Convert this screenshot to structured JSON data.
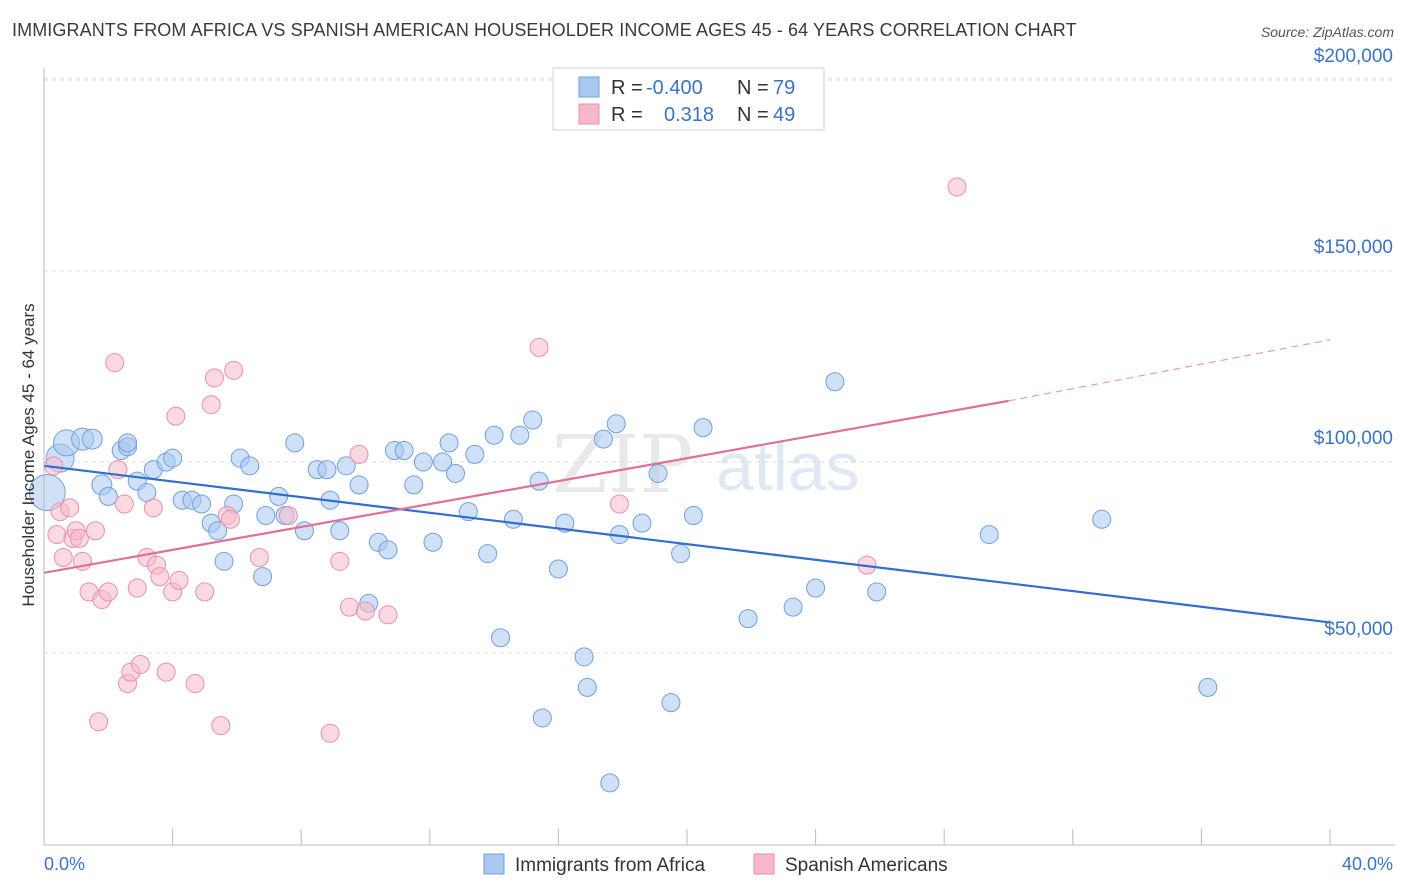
{
  "title": "IMMIGRANTS FROM AFRICA VS SPANISH AMERICAN HOUSEHOLDER INCOME AGES 45 - 64 YEARS CORRELATION CHART",
  "source": "Source: ZipAtlas.com",
  "watermark": {
    "zip": "ZIP",
    "atlas": "atlas"
  },
  "legend_top": [
    {
      "r_label": "R =",
      "r_value": "-0.400",
      "n_label": "N =",
      "n_value": "79",
      "color": "#a9c8f0"
    },
    {
      "r_label": "R =",
      "r_value": "0.318",
      "n_label": "N =",
      "n_value": "49",
      "color": "#f6b9cb"
    }
  ],
  "chart_data": {
    "type": "scatter",
    "title": "IMMIGRANTS FROM AFRICA VS SPANISH AMERICAN HOUSEHOLDER INCOME AGES 45 - 64 YEARS CORRELATION CHART",
    "xlabel": "",
    "ylabel": "Householder Income Ages 45 - 64 years",
    "xlim": [
      0,
      40
    ],
    "ylim": [
      5000,
      210000
    ],
    "x_tick_labels": [
      "0.0%",
      "40.0%"
    ],
    "y_ticks": [
      50000,
      100000,
      150000,
      200000
    ],
    "y_tick_labels": [
      "$50,000",
      "$100,000",
      "$150,000",
      "$200,000"
    ],
    "grid": true,
    "legend_position": "top-center",
    "series": [
      {
        "name": "Immigrants from Africa",
        "color": "#6fa0e0",
        "fill": "#a9c8f0",
        "trend": {
          "x0": 0,
          "y0": 99000,
          "x1": 40,
          "y1": 58000,
          "color": "#2f6fce"
        },
        "points": [
          [
            0.1,
            92000,
            18
          ],
          [
            0.5,
            101000,
            14
          ],
          [
            0.7,
            105000,
            13
          ],
          [
            1.2,
            106000,
            11
          ],
          [
            1.5,
            106000,
            10
          ],
          [
            1.8,
            94000,
            10
          ],
          [
            2.0,
            91000,
            9
          ],
          [
            2.4,
            103000,
            9
          ],
          [
            2.6,
            104000,
            9
          ],
          [
            2.9,
            95000,
            9
          ],
          [
            3.2,
            92000,
            9
          ],
          [
            3.4,
            98000,
            9
          ],
          [
            3.8,
            100000,
            9
          ],
          [
            4.0,
            101000,
            9
          ],
          [
            4.3,
            90000,
            9
          ],
          [
            4.6,
            90000,
            9
          ],
          [
            4.9,
            89000,
            9
          ],
          [
            5.2,
            84000,
            9
          ],
          [
            5.4,
            82000,
            9
          ],
          [
            5.6,
            74000,
            9
          ],
          [
            5.9,
            89000,
            9
          ],
          [
            6.1,
            101000,
            9
          ],
          [
            6.4,
            99000,
            9
          ],
          [
            6.8,
            70000,
            9
          ],
          [
            6.9,
            86000,
            9
          ],
          [
            7.3,
            91000,
            9
          ],
          [
            7.5,
            86000,
            9
          ],
          [
            7.8,
            105000,
            9
          ],
          [
            8.1,
            82000,
            9
          ],
          [
            8.5,
            98000,
            9
          ],
          [
            8.8,
            98000,
            9
          ],
          [
            8.9,
            90000,
            9
          ],
          [
            9.2,
            82000,
            9
          ],
          [
            9.4,
            99000,
            9
          ],
          [
            9.8,
            94000,
            9
          ],
          [
            10.1,
            63000,
            9
          ],
          [
            10.4,
            79000,
            9
          ],
          [
            10.7,
            77000,
            9
          ],
          [
            10.9,
            103000,
            9
          ],
          [
            11.2,
            103000,
            9
          ],
          [
            11.5,
            94000,
            9
          ],
          [
            11.8,
            100000,
            9
          ],
          [
            12.1,
            79000,
            9
          ],
          [
            12.4,
            100000,
            9
          ],
          [
            12.6,
            105000,
            9
          ],
          [
            12.8,
            97000,
            9
          ],
          [
            13.2,
            87000,
            9
          ],
          [
            13.4,
            102000,
            9
          ],
          [
            13.8,
            76000,
            9
          ],
          [
            14.0,
            107000,
            9
          ],
          [
            14.2,
            54000,
            9
          ],
          [
            14.6,
            85000,
            9
          ],
          [
            14.8,
            107000,
            9
          ],
          [
            15.2,
            111000,
            9
          ],
          [
            15.4,
            95000,
            9
          ],
          [
            15.5,
            33000,
            9
          ],
          [
            16.0,
            72000,
            9
          ],
          [
            16.2,
            84000,
            9
          ],
          [
            16.8,
            49000,
            9
          ],
          [
            16.9,
            41000,
            9
          ],
          [
            17.4,
            106000,
            9
          ],
          [
            17.8,
            110000,
            9
          ],
          [
            17.6,
            16000,
            9
          ],
          [
            17.9,
            81000,
            9
          ],
          [
            18.6,
            84000,
            9
          ],
          [
            19.1,
            97000,
            9
          ],
          [
            19.5,
            37000,
            9
          ],
          [
            19.8,
            76000,
            9
          ],
          [
            20.2,
            86000,
            9
          ],
          [
            20.5,
            109000,
            9
          ],
          [
            21.9,
            59000,
            9
          ],
          [
            23.3,
            62000,
            9
          ],
          [
            24.0,
            67000,
            9
          ],
          [
            24.6,
            121000,
            9
          ],
          [
            25.9,
            66000,
            9
          ],
          [
            29.4,
            81000,
            9
          ],
          [
            32.9,
            85000,
            9
          ],
          [
            36.2,
            41000,
            9
          ],
          [
            2.6,
            105000,
            9
          ]
        ]
      },
      {
        "name": "Spanish Americans",
        "color": "#ec8fab",
        "fill": "#f6b9cb",
        "trend": {
          "x0": 0,
          "y0": 71000,
          "x1": 30,
          "y1": 116000,
          "color": "#e07099"
        },
        "trend_dashed": {
          "x0": 30,
          "y0": 116000,
          "x1": 40,
          "y1": 132000
        },
        "points": [
          [
            0.3,
            99000,
            9
          ],
          [
            0.4,
            81000,
            9
          ],
          [
            0.5,
            87000,
            9
          ],
          [
            0.6,
            75000,
            9
          ],
          [
            0.8,
            88000,
            9
          ],
          [
            0.9,
            80000,
            9
          ],
          [
            1.0,
            82000,
            9
          ],
          [
            1.1,
            80000,
            9
          ],
          [
            1.2,
            74000,
            9
          ],
          [
            1.4,
            66000,
            9
          ],
          [
            1.6,
            82000,
            9
          ],
          [
            1.8,
            64000,
            9
          ],
          [
            1.7,
            32000,
            9
          ],
          [
            2.0,
            66000,
            9
          ],
          [
            2.2,
            126000,
            9
          ],
          [
            2.3,
            98000,
            9
          ],
          [
            2.5,
            89000,
            9
          ],
          [
            2.6,
            42000,
            9
          ],
          [
            2.7,
            45000,
            9
          ],
          [
            2.9,
            67000,
            9
          ],
          [
            3.0,
            47000,
            9
          ],
          [
            3.2,
            75000,
            9
          ],
          [
            3.4,
            88000,
            9
          ],
          [
            3.5,
            73000,
            9
          ],
          [
            3.8,
            45000,
            9
          ],
          [
            4.0,
            66000,
            9
          ],
          [
            4.1,
            112000,
            9
          ],
          [
            4.2,
            69000,
            9
          ],
          [
            4.7,
            42000,
            9
          ],
          [
            5.0,
            66000,
            9
          ],
          [
            5.2,
            115000,
            9
          ],
          [
            5.3,
            122000,
            9
          ],
          [
            5.5,
            31000,
            9
          ],
          [
            5.7,
            86000,
            9
          ],
          [
            5.9,
            124000,
            9
          ],
          [
            6.7,
            75000,
            9
          ],
          [
            7.6,
            86000,
            9
          ],
          [
            8.9,
            29000,
            9
          ],
          [
            9.2,
            74000,
            9
          ],
          [
            9.5,
            62000,
            9
          ],
          [
            9.8,
            102000,
            9
          ],
          [
            10.0,
            61000,
            9
          ],
          [
            10.7,
            60000,
            9
          ],
          [
            15.4,
            130000,
            9
          ],
          [
            17.9,
            89000,
            9
          ],
          [
            25.6,
            73000,
            9
          ],
          [
            28.4,
            172000,
            9
          ],
          [
            5.8,
            85000,
            9
          ],
          [
            3.6,
            70000,
            9
          ]
        ]
      }
    ]
  }
}
